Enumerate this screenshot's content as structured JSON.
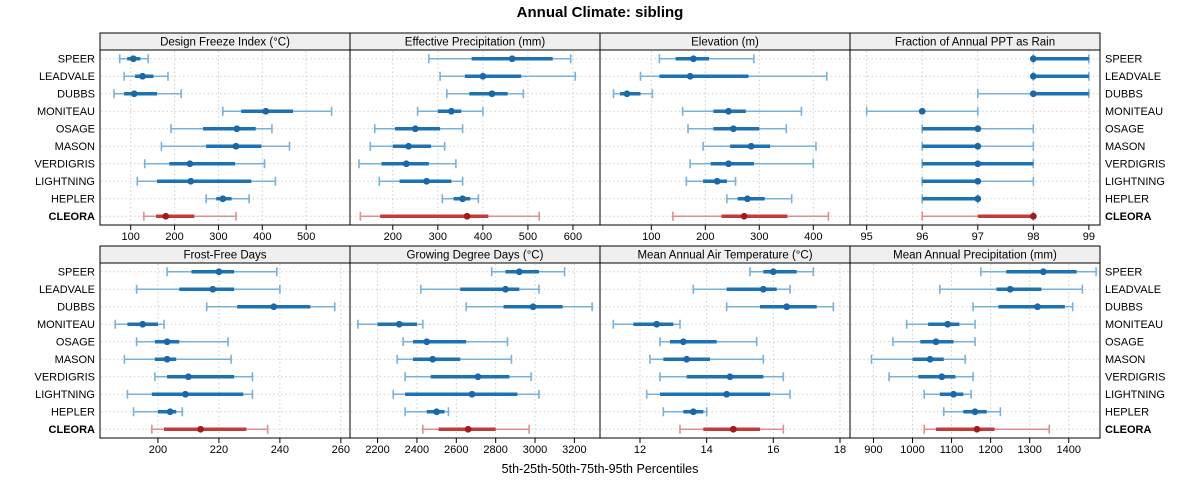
{
  "title": "Annual Climate: sibling",
  "footer": "5th-25th-50th-75th-95th Percentiles",
  "colors": {
    "blue_line": "#7ab1d8",
    "blue_bar": "#1d72b2",
    "blue_dot": "#1a68a7",
    "red_line": "#de9090",
    "red_bar": "#c13b3b",
    "red_dot": "#a31c1c",
    "grid": "#cccccc",
    "row_guide": "#cfcfcf",
    "header_bg": "#efefef",
    "border": "#000000",
    "text": "#000000"
  },
  "chart_data": {
    "type": "dotplot-percentile-panels",
    "percentile_levels": [
      5,
      25,
      50,
      75,
      95
    ],
    "sites": [
      "SPEER",
      "LEADVALE",
      "DUBBS",
      "MONITEAU",
      "OSAGE",
      "MASON",
      "VERDIGRIS",
      "LIGHTNING",
      "HEPLER",
      "CLEORA"
    ],
    "highlight_site": "CLEORA",
    "legend_note": "values per site are 5th-25th-50th-75th-95th percentiles",
    "panels": [
      {
        "title": "Design Freeze Index (°C)",
        "xlim": [
          30,
          600
        ],
        "ticks": [
          100,
          200,
          300,
          400,
          500
        ],
        "values": [
          [
            75,
            92,
            106,
            122,
            140
          ],
          [
            85,
            110,
            127,
            152,
            185
          ],
          [
            62,
            85,
            108,
            160,
            215
          ],
          [
            310,
            352,
            408,
            470,
            558
          ],
          [
            192,
            265,
            342,
            385,
            422
          ],
          [
            170,
            272,
            340,
            398,
            462
          ],
          [
            132,
            188,
            235,
            338,
            405
          ],
          [
            115,
            160,
            237,
            375,
            430
          ],
          [
            272,
            295,
            310,
            330,
            370
          ],
          [
            130,
            158,
            180,
            245,
            340
          ]
        ]
      },
      {
        "title": "Effective Precipitation (mm)",
        "xlim": [
          105,
          660
        ],
        "ticks": [
          200,
          300,
          400,
          500,
          600
        ],
        "values": [
          [
            280,
            375,
            465,
            555,
            595
          ],
          [
            305,
            360,
            400,
            485,
            605
          ],
          [
            320,
            370,
            420,
            455,
            490
          ],
          [
            255,
            300,
            330,
            352,
            400
          ],
          [
            160,
            205,
            250,
            305,
            355
          ],
          [
            150,
            200,
            235,
            285,
            315
          ],
          [
            125,
            175,
            230,
            280,
            340
          ],
          [
            170,
            215,
            275,
            330,
            355
          ],
          [
            310,
            335,
            355,
            372,
            390
          ],
          [
            128,
            172,
            365,
            412,
            525
          ]
        ]
      },
      {
        "title": "Elevation (m)",
        "xlim": [
          5,
          468
        ],
        "ticks": [
          100,
          200,
          300,
          400
        ],
        "values": [
          [
            115,
            145,
            178,
            207,
            290
          ],
          [
            80,
            115,
            172,
            280,
            425
          ],
          [
            30,
            42,
            55,
            80,
            102
          ],
          [
            158,
            215,
            243,
            275,
            378
          ],
          [
            168,
            215,
            252,
            300,
            350
          ],
          [
            196,
            246,
            285,
            320,
            405
          ],
          [
            172,
            210,
            243,
            290,
            400
          ],
          [
            165,
            196,
            222,
            240,
            256
          ],
          [
            240,
            260,
            278,
            310,
            360
          ],
          [
            140,
            230,
            272,
            352,
            428
          ]
        ]
      },
      {
        "title": "Fraction of Annual PPT as Rain",
        "xlim": [
          94.7,
          99.2
        ],
        "ticks": [
          95,
          96,
          97,
          98,
          99
        ],
        "values": [
          [
            98,
            98,
            98,
            99,
            99
          ],
          [
            98,
            98,
            98,
            99,
            99
          ],
          [
            97,
            98,
            98,
            99,
            99
          ],
          [
            95,
            96,
            96,
            96,
            97
          ],
          [
            96,
            96,
            97,
            97,
            98
          ],
          [
            96,
            96,
            97,
            97,
            98
          ],
          [
            96,
            96,
            97,
            98,
            98
          ],
          [
            96,
            96,
            97,
            97,
            98
          ],
          [
            96,
            96,
            97,
            97,
            97
          ],
          [
            96,
            97,
            98,
            98,
            98
          ]
        ]
      },
      {
        "title": "Frost-Free Days",
        "xlim": [
          181,
          263
        ],
        "ticks": [
          200,
          220,
          240,
          260
        ],
        "values": [
          [
            203,
            211,
            220,
            225,
            239
          ],
          [
            193,
            207,
            218,
            225,
            240
          ],
          [
            216,
            226,
            238,
            250,
            258
          ],
          [
            186,
            190,
            195,
            200,
            202
          ],
          [
            193,
            199,
            203,
            207,
            223
          ],
          [
            189,
            199,
            203,
            206,
            224
          ],
          [
            199,
            203,
            210,
            225,
            231
          ],
          [
            190,
            198,
            209,
            228,
            231
          ],
          [
            192,
            200,
            204,
            206,
            208
          ],
          [
            198,
            202,
            214,
            229,
            236
          ]
        ]
      },
      {
        "title": "Growing Degree Days (°C)",
        "xlim": [
          2060,
          3330
        ],
        "ticks": [
          2200,
          2400,
          2600,
          2800,
          3000,
          3200
        ],
        "values": [
          [
            2780,
            2850,
            2920,
            3020,
            3150
          ],
          [
            2420,
            2620,
            2850,
            2920,
            3020
          ],
          [
            2650,
            2840,
            2990,
            3140,
            3290
          ],
          [
            2100,
            2200,
            2310,
            2400,
            2430
          ],
          [
            2330,
            2380,
            2450,
            2650,
            2860
          ],
          [
            2300,
            2380,
            2480,
            2620,
            2880
          ],
          [
            2340,
            2470,
            2710,
            2870,
            2980
          ],
          [
            2280,
            2340,
            2680,
            2910,
            3020
          ],
          [
            2340,
            2450,
            2500,
            2540,
            2560
          ],
          [
            2430,
            2510,
            2660,
            2800,
            2970
          ]
        ]
      },
      {
        "title": "Mean Annual Air Temperature (°C)",
        "xlim": [
          10.8,
          18.3
        ],
        "ticks": [
          12,
          14,
          16,
          18
        ],
        "values": [
          [
            15.3,
            15.7,
            16.0,
            16.7,
            17.2
          ],
          [
            13.6,
            14.6,
            15.7,
            16.1,
            16.5
          ],
          [
            14.6,
            15.6,
            16.4,
            17.3,
            17.8
          ],
          [
            11.2,
            11.8,
            12.5,
            13.0,
            13.2
          ],
          [
            12.6,
            12.9,
            13.3,
            14.3,
            15.5
          ],
          [
            12.3,
            12.7,
            13.4,
            14.1,
            15.7
          ],
          [
            12.6,
            13.4,
            14.7,
            15.7,
            16.3
          ],
          [
            12.2,
            12.6,
            14.6,
            15.9,
            16.5
          ],
          [
            12.7,
            13.3,
            13.6,
            13.9,
            14.0
          ],
          [
            13.2,
            13.9,
            14.8,
            15.6,
            16.3
          ]
        ]
      },
      {
        "title": "Mean Annual Precipitation (mm)",
        "xlim": [
          840,
          1480
        ],
        "ticks": [
          900,
          1000,
          1100,
          1200,
          1300,
          1400
        ],
        "values": [
          [
            1175,
            1240,
            1335,
            1420,
            1470
          ],
          [
            1070,
            1215,
            1250,
            1330,
            1435
          ],
          [
            1155,
            1220,
            1320,
            1390,
            1410
          ],
          [
            985,
            1040,
            1090,
            1120,
            1160
          ],
          [
            950,
            1020,
            1060,
            1105,
            1160
          ],
          [
            895,
            1000,
            1045,
            1080,
            1135
          ],
          [
            940,
            1015,
            1075,
            1110,
            1155
          ],
          [
            1030,
            1070,
            1105,
            1130,
            1150
          ],
          [
            1080,
            1130,
            1160,
            1190,
            1225
          ],
          [
            1030,
            1060,
            1165,
            1210,
            1350
          ]
        ]
      }
    ]
  }
}
